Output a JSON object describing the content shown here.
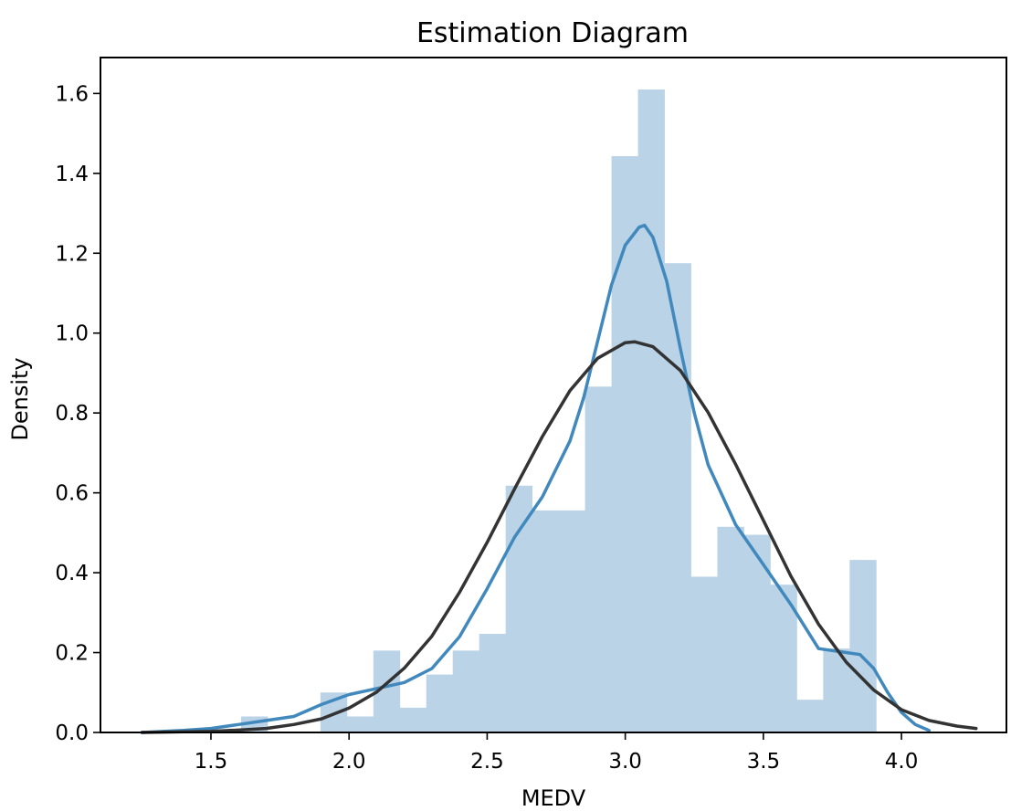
{
  "chart_data": {
    "type": "histogram",
    "title": "Estimation Diagram",
    "xlabel": "MEDV",
    "ylabel": "Density",
    "xlim": [
      1.1,
      4.38
    ],
    "ylim": [
      0,
      1.69
    ],
    "xticks": [
      1.5,
      2.0,
      2.5,
      3.0,
      3.5,
      4.0
    ],
    "xtick_labels": [
      "1.5",
      "2.0",
      "2.5",
      "3.0",
      "3.5",
      "4.0"
    ],
    "yticks": [
      0.0,
      0.2,
      0.4,
      0.6,
      0.8,
      1.0,
      1.2,
      1.4,
      1.6
    ],
    "ytick_labels": [
      "0.0",
      "0.2",
      "0.4",
      "0.6",
      "0.8",
      "1.0",
      "1.2",
      "1.4",
      "1.6"
    ],
    "grid": false,
    "colors": {
      "bars": "#bad3e6",
      "kde": "#4189bd",
      "fit": "#333333",
      "axes": "#000000"
    },
    "histogram": {
      "bin_start": 1.609,
      "bin_width": 0.0958,
      "values": [
        0.04,
        0.0,
        0.0,
        0.1,
        0.04,
        0.205,
        0.062,
        0.145,
        0.205,
        0.247,
        0.618,
        0.556,
        0.556,
        0.866,
        1.443,
        1.61,
        1.175,
        0.39,
        0.515,
        0.495,
        0.37,
        0.082,
        0.21,
        0.432
      ]
    },
    "series": [
      {
        "x": [
          1.25,
          1.4,
          1.5,
          1.6,
          1.7,
          1.8,
          1.9,
          2.0,
          2.1,
          2.2,
          2.3,
          2.4,
          2.5,
          2.6,
          2.7,
          2.8,
          2.85,
          2.9,
          2.95,
          3.0,
          3.05,
          3.07,
          3.1,
          3.15,
          3.2,
          3.25,
          3.3,
          3.4,
          3.5,
          3.6,
          3.7,
          3.8,
          3.85,
          3.9,
          3.95,
          4.0,
          4.05,
          4.1
        ],
        "y": [
          0.0,
          0.005,
          0.01,
          0.02,
          0.03,
          0.04,
          0.07,
          0.095,
          0.11,
          0.125,
          0.16,
          0.24,
          0.36,
          0.49,
          0.59,
          0.73,
          0.84,
          0.98,
          1.12,
          1.22,
          1.265,
          1.27,
          1.24,
          1.13,
          0.96,
          0.8,
          0.67,
          0.52,
          0.42,
          0.32,
          0.21,
          0.2,
          0.195,
          0.16,
          0.1,
          0.05,
          0.02,
          0.005
        ]
      },
      {
        "x": [
          1.25,
          1.4,
          1.5,
          1.6,
          1.7,
          1.8,
          1.9,
          2.0,
          2.1,
          2.2,
          2.3,
          2.4,
          2.5,
          2.6,
          2.7,
          2.8,
          2.9,
          3.0,
          3.035,
          3.1,
          3.2,
          3.3,
          3.4,
          3.5,
          3.6,
          3.7,
          3.8,
          3.9,
          4.0,
          4.1,
          4.2,
          4.27
        ],
        "y": [
          0.0,
          0.0015,
          0.003,
          0.006,
          0.01,
          0.02,
          0.034,
          0.061,
          0.101,
          0.161,
          0.241,
          0.351,
          0.476,
          0.611,
          0.741,
          0.856,
          0.937,
          0.976,
          0.978,
          0.966,
          0.906,
          0.801,
          0.671,
          0.531,
          0.391,
          0.271,
          0.176,
          0.106,
          0.057,
          0.03,
          0.016,
          0.01
        ]
      }
    ]
  }
}
